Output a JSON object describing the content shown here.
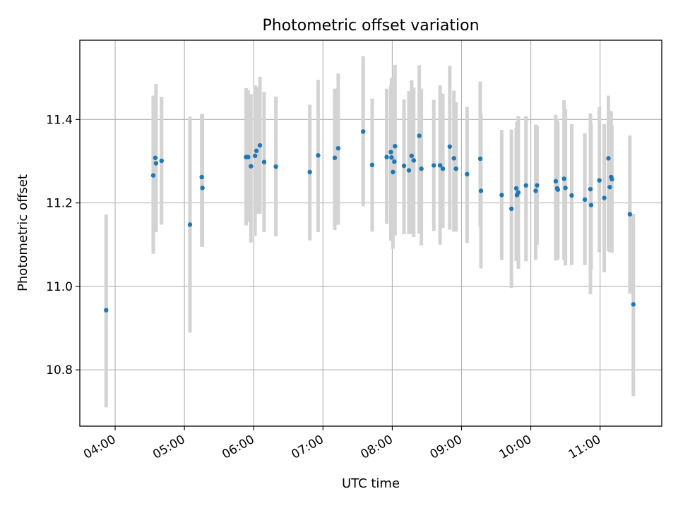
{
  "chart_data": {
    "type": "scatter",
    "title": "Photometric offset variation",
    "xlabel": "UTC time",
    "ylabel": "Photometric offset",
    "x_unit": "hours UTC",
    "xlim": [
      3.49,
      11.89
    ],
    "ylim": [
      10.665,
      11.59
    ],
    "grid": true,
    "legend": "none",
    "x_ticks": [
      {
        "value": 4,
        "label": "04:00"
      },
      {
        "value": 5,
        "label": "05:00"
      },
      {
        "value": 6,
        "label": "06:00"
      },
      {
        "value": 7,
        "label": "07:00"
      },
      {
        "value": 8,
        "label": "08:00"
      },
      {
        "value": 9,
        "label": "09:00"
      },
      {
        "value": 10,
        "label": "10:00"
      },
      {
        "value": 11,
        "label": "11:00"
      }
    ],
    "y_ticks": [
      {
        "value": 10.8,
        "label": "10.8"
      },
      {
        "value": 11.0,
        "label": "11.0"
      },
      {
        "value": 11.2,
        "label": "11.2"
      },
      {
        "value": 11.4,
        "label": "11.4"
      }
    ],
    "colors": {
      "point": "#1f77b4",
      "errorbar": "#d3d3d3",
      "grid": "#b0b0b0"
    },
    "series": [
      {
        "x": [
          3.87,
          4.55,
          4.58,
          4.59,
          4.67,
          5.08,
          5.25,
          5.26,
          5.89,
          5.92,
          5.96,
          6.02,
          6.04,
          6.09,
          6.15,
          6.32,
          6.81,
          6.93,
          7.17,
          7.22,
          7.58,
          7.71,
          7.92,
          7.98,
          7.99,
          8.01,
          8.03,
          8.04,
          8.17,
          8.24,
          8.28,
          8.31,
          8.39,
          8.42,
          8.6,
          8.69,
          8.73,
          8.83,
          8.89,
          8.92,
          9.08,
          9.27,
          9.28,
          9.58,
          9.72,
          9.79,
          9.8,
          9.82,
          9.93,
          10.07,
          10.09,
          10.36,
          10.38,
          10.39,
          10.48,
          10.5,
          10.59,
          10.78,
          10.86,
          10.87,
          10.99,
          11.06,
          11.12,
          11.14,
          11.16,
          11.17,
          11.43,
          11.48
        ],
        "y": [
          10.943,
          11.266,
          11.308,
          11.295,
          11.301,
          11.148,
          11.262,
          11.236,
          11.31,
          11.31,
          11.288,
          11.313,
          11.325,
          11.338,
          11.298,
          11.287,
          11.274,
          11.314,
          11.308,
          11.331,
          11.371,
          11.291,
          11.31,
          11.322,
          11.309,
          11.274,
          11.299,
          11.336,
          11.289,
          11.278,
          11.313,
          11.302,
          11.361,
          11.282,
          11.29,
          11.29,
          11.282,
          11.335,
          11.307,
          11.282,
          11.269,
          11.306,
          11.229,
          11.219,
          11.186,
          11.235,
          11.219,
          11.225,
          11.242,
          11.229,
          11.242,
          11.252,
          11.235,
          11.232,
          11.258,
          11.236,
          11.218,
          11.208,
          11.233,
          11.195,
          11.254,
          11.212,
          11.307,
          11.238,
          11.262,
          11.257,
          11.173,
          10.957
        ],
        "yerr_low": [
          10.71,
          11.078,
          11.178,
          11.13,
          11.148,
          10.889,
          11.095,
          11.095,
          11.146,
          11.155,
          11.105,
          11.121,
          11.174,
          11.174,
          11.13,
          11.12,
          11.11,
          11.13,
          11.135,
          11.148,
          11.192,
          11.131,
          11.15,
          11.11,
          11.11,
          11.09,
          11.127,
          11.122,
          11.125,
          11.125,
          11.125,
          11.118,
          11.127,
          11.098,
          11.133,
          11.1,
          11.14,
          11.136,
          11.131,
          11.131,
          11.104,
          11.142,
          11.043,
          11.063,
          10.996,
          11.061,
          11.064,
          11.042,
          11.06,
          11.064,
          11.1,
          11.062,
          11.07,
          11.064,
          11.063,
          11.05,
          11.051,
          11.051,
          10.981,
          11.04,
          11.082,
          11.034,
          11.085,
          11.082,
          11.084,
          11.081,
          10.982,
          10.737
        ],
        "yerr_high": [
          11.172,
          11.457,
          11.45,
          11.485,
          11.454,
          11.407,
          11.413,
          11.413,
          11.475,
          11.47,
          11.461,
          11.482,
          11.478,
          11.502,
          11.466,
          11.455,
          11.436,
          11.495,
          11.474,
          11.51,
          11.552,
          11.45,
          11.474,
          11.482,
          11.5,
          11.456,
          11.494,
          11.531,
          11.448,
          11.468,
          11.494,
          11.476,
          11.53,
          11.474,
          11.447,
          11.482,
          11.462,
          11.529,
          11.469,
          11.441,
          11.43,
          11.491,
          11.415,
          11.375,
          11.376,
          11.38,
          11.395,
          11.408,
          11.408,
          11.388,
          11.385,
          11.411,
          11.402,
          11.394,
          11.446,
          11.425,
          11.389,
          11.367,
          11.415,
          11.391,
          11.43,
          11.389,
          11.457,
          11.411,
          11.42,
          11.386,
          11.362,
          11.174
        ]
      }
    ]
  }
}
